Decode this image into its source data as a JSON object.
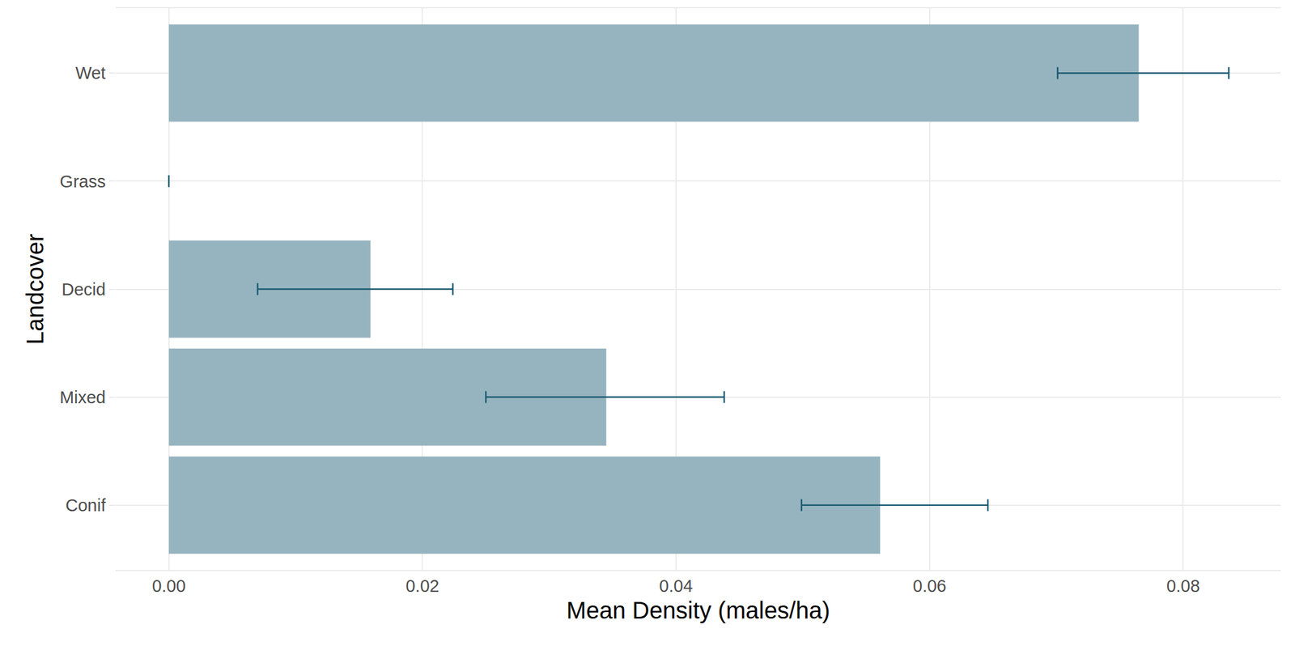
{
  "chart_data": {
    "type": "bar",
    "orientation": "horizontal",
    "x_label": "Mean Density (males/ha)",
    "y_label": "Landcover",
    "categories": [
      "Conif",
      "Mixed",
      "Decid",
      "Grass",
      "Wet"
    ],
    "values": [
      0.0561,
      0.0345,
      0.0159,
      0,
      0.0765
    ],
    "error_low": [
      0.0499,
      0.025,
      0.007,
      0,
      0.0701
    ],
    "error_high": [
      0.0646,
      0.0438,
      0.0224,
      0,
      0.0836
    ],
    "color": "#96b4bf",
    "xlim": [
      -0.0042,
      0.0877
    ],
    "xticks": [
      {
        "value": 0,
        "label": "0.00"
      },
      {
        "value": 0.02,
        "label": "0.02"
      },
      {
        "value": 0.04,
        "label": "0.04"
      },
      {
        "value": 0.06,
        "label": "0.06"
      },
      {
        "value": 0.08,
        "label": "0.08"
      }
    ],
    "grid": true
  }
}
